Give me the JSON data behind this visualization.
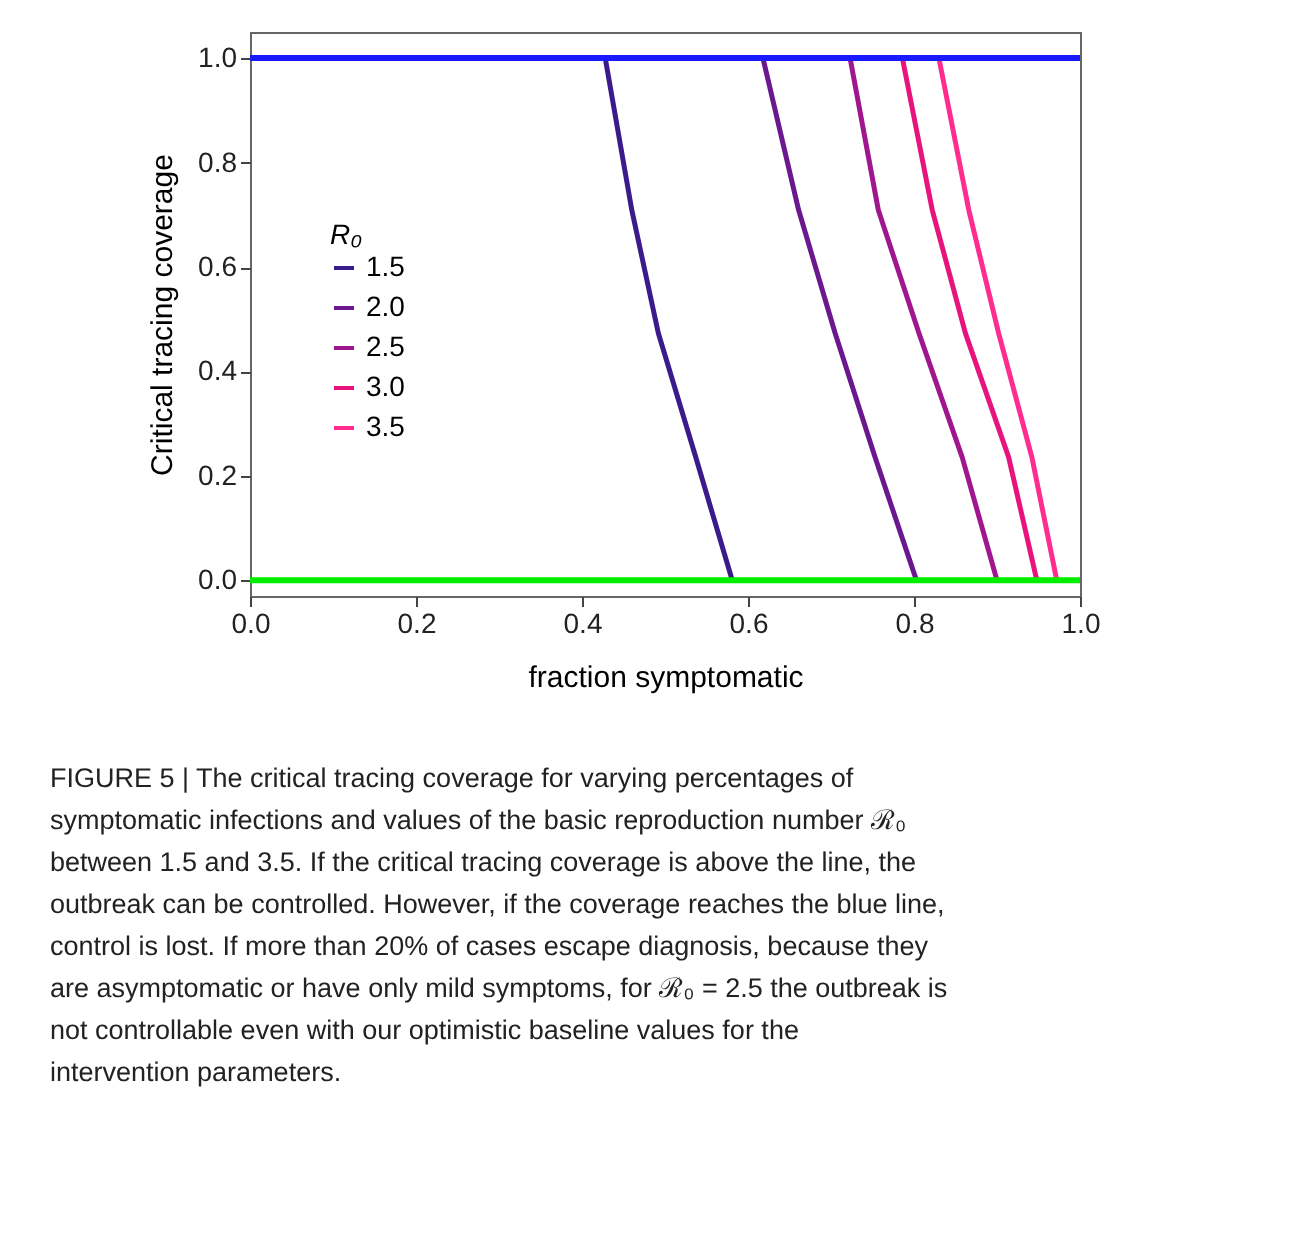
{
  "chart_data": {
    "type": "line",
    "xlabel": "fraction symptomatic",
    "ylabel": "Critical tracing coverage",
    "legend_title": "R₀",
    "series": [
      {
        "name": "1.5",
        "color": "#3b1a8c",
        "x": [
          0.428,
          0.46,
          0.492,
          0.537,
          0.581
        ],
        "values": [
          1,
          0.709,
          0.473,
          0.236,
          0
        ]
      },
      {
        "name": "2.0",
        "color": "#6a1790",
        "x": [
          0.618,
          0.661,
          0.705,
          0.753,
          0.803
        ],
        "values": [
          1,
          0.709,
          0.473,
          0.236,
          0
        ]
      },
      {
        "name": "2.5",
        "color": "#a0168e",
        "x": [
          0.723,
          0.757,
          0.806,
          0.858,
          0.9
        ],
        "values": [
          1,
          0.709,
          0.473,
          0.236,
          0
        ]
      },
      {
        "name": "3.0",
        "color": "#e8147e",
        "x": [
          0.786,
          0.822,
          0.862,
          0.914,
          0.948
        ],
        "values": [
          1,
          0.709,
          0.473,
          0.236,
          0
        ]
      },
      {
        "name": "3.5",
        "color": "#ff2d8f",
        "x": [
          0.83,
          0.866,
          0.902,
          0.942,
          0.972
        ],
        "values": [
          1,
          0.709,
          0.473,
          0.236,
          0
        ]
      }
    ],
    "ref_lines": [
      {
        "axis": "y",
        "value": 1,
        "label": null,
        "color": "#1a1aff"
      },
      {
        "axis": "y",
        "value": 0,
        "label": null,
        "color": "#00ee00"
      }
    ],
    "xlim": [
      0,
      1
    ],
    "ylim": [
      -0.03,
      1.05
    ],
    "xticks": [
      {
        "value": 0,
        "label": "0.0"
      },
      {
        "value": 0.2,
        "label": "0.2"
      },
      {
        "value": 0.4,
        "label": "0.4"
      },
      {
        "value": 0.6,
        "label": "0.6"
      },
      {
        "value": 0.8,
        "label": "0.8"
      },
      {
        "value": 1,
        "label": "1.0"
      }
    ],
    "yticks": [
      {
        "value": 0,
        "label": "0.0"
      },
      {
        "value": 0.2,
        "label": "0.2"
      },
      {
        "value": 0.4,
        "label": "0.4"
      },
      {
        "value": 0.6,
        "label": "0.6"
      },
      {
        "value": 0.8,
        "label": "0.8"
      },
      {
        "value": 1,
        "label": "1.0"
      }
    ],
    "grid": false,
    "legend": "left",
    "marker": "none",
    "line_style": "solid",
    "annotations": [
      "FIGURE 5 | The critical tracing coverage for varying percentages of symptomatic infections and values of the basic reproduction number ℛ₀ between 1.5 and 3.5. If the critical tracing coverage is above the line, the outbreak can be controlled. However, if the coverage reaches the blue line, control is lost. If more than 20% of cases escape diagnosis, because they are asymptomatic or have only mild symptoms, for ℛ₀ = 2.5 the outbreak is not controllable even with our optimistic baseline values for the intervention parameters."
    ]
  }
}
